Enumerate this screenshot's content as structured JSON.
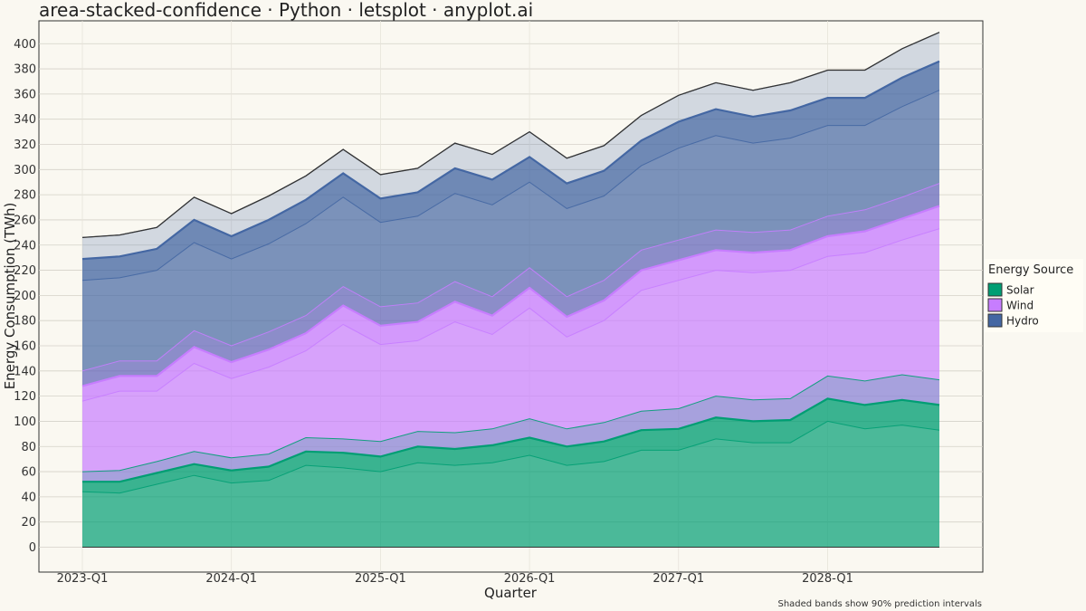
{
  "chart_data": {
    "type": "area",
    "stacked": true,
    "title": "area-stacked-confidence · Python · letsplot · anyplot.ai",
    "xlabel": "Quarter",
    "ylabel": "Energy Consumption (TWh)",
    "ylim": [
      -20,
      415
    ],
    "yticks": [
      0,
      20,
      40,
      60,
      80,
      100,
      120,
      140,
      160,
      180,
      200,
      220,
      240,
      260,
      280,
      300,
      320,
      340,
      360,
      380,
      400
    ],
    "x": [
      "2023-Q1",
      "2023-Q2",
      "2023-Q3",
      "2023-Q4",
      "2024-Q1",
      "2024-Q2",
      "2024-Q3",
      "2024-Q4",
      "2025-Q1",
      "2025-Q2",
      "2025-Q3",
      "2025-Q4",
      "2026-Q1",
      "2026-Q2",
      "2026-Q3",
      "2026-Q4",
      "2027-Q1",
      "2027-Q2",
      "2027-Q3",
      "2027-Q4",
      "2028-Q1",
      "2028-Q2",
      "2028-Q3",
      "2028-Q4"
    ],
    "xticks": [
      "2023-Q1",
      "2024-Q1",
      "2025-Q1",
      "2026-Q1",
      "2027-Q1",
      "2028-Q1"
    ],
    "grid": true,
    "legend": {
      "title": "Energy Source",
      "placement": "right",
      "entries": [
        "Solar",
        "Wind",
        "Hydro"
      ]
    },
    "series": [
      {
        "name": "Solar",
        "color": "#009E73",
        "values": [
          52,
          52,
          59,
          66,
          61,
          64,
          76,
          75,
          72,
          80,
          78,
          81,
          87,
          80,
          84,
          93,
          94,
          103,
          100,
          101,
          118,
          113,
          117,
          113
        ],
        "lower": [
          44,
          43,
          50,
          57,
          51,
          53,
          65,
          63,
          60,
          67,
          65,
          67,
          73,
          65,
          68,
          77,
          77,
          86,
          83,
          83,
          100,
          94,
          97,
          93
        ],
        "upper": [
          60,
          61,
          68,
          76,
          71,
          74,
          87,
          86,
          84,
          92,
          91,
          94,
          102,
          94,
          99,
          108,
          110,
          120,
          117,
          118,
          136,
          132,
          137,
          133
        ]
      },
      {
        "name": "Wind",
        "color": "#C77DFF",
        "values": [
          76,
          84,
          77,
          93,
          86,
          93,
          94,
          117,
          104,
          99,
          117,
          103,
          119,
          103,
          112,
          127,
          134,
          133,
          134,
          135,
          129,
          138,
          144,
          158
        ],
        "lower": [
          64,
          72,
          65,
          80,
          73,
          79,
          80,
          102,
          89,
          84,
          101,
          88,
          103,
          87,
          96,
          111,
          118,
          117,
          118,
          119,
          113,
          121,
          127,
          140
        ],
        "upper": [
          88,
          96,
          89,
          106,
          99,
          107,
          108,
          132,
          119,
          114,
          133,
          118,
          135,
          119,
          128,
          143,
          150,
          149,
          150,
          151,
          145,
          155,
          161,
          176
        ]
      },
      {
        "name": "Hydro",
        "color": "#4467A3",
        "values": [
          101,
          95,
          101,
          101,
          100,
          103,
          106,
          105,
          101,
          103,
          106,
          108,
          104,
          106,
          103,
          103,
          110,
          112,
          108,
          111,
          110,
          106,
          112,
          115
        ],
        "lower": [
          84,
          78,
          84,
          83,
          82,
          84,
          87,
          86,
          82,
          84,
          86,
          88,
          84,
          86,
          83,
          83,
          89,
          91,
          87,
          89,
          88,
          84,
          89,
          92
        ],
        "upper": [
          118,
          112,
          118,
          119,
          118,
          122,
          125,
          124,
          120,
          122,
          126,
          128,
          124,
          126,
          123,
          123,
          131,
          133,
          129,
          133,
          132,
          128,
          135,
          138
        ]
      }
    ],
    "caption": "Shaded bands show 90% prediction intervals"
  }
}
